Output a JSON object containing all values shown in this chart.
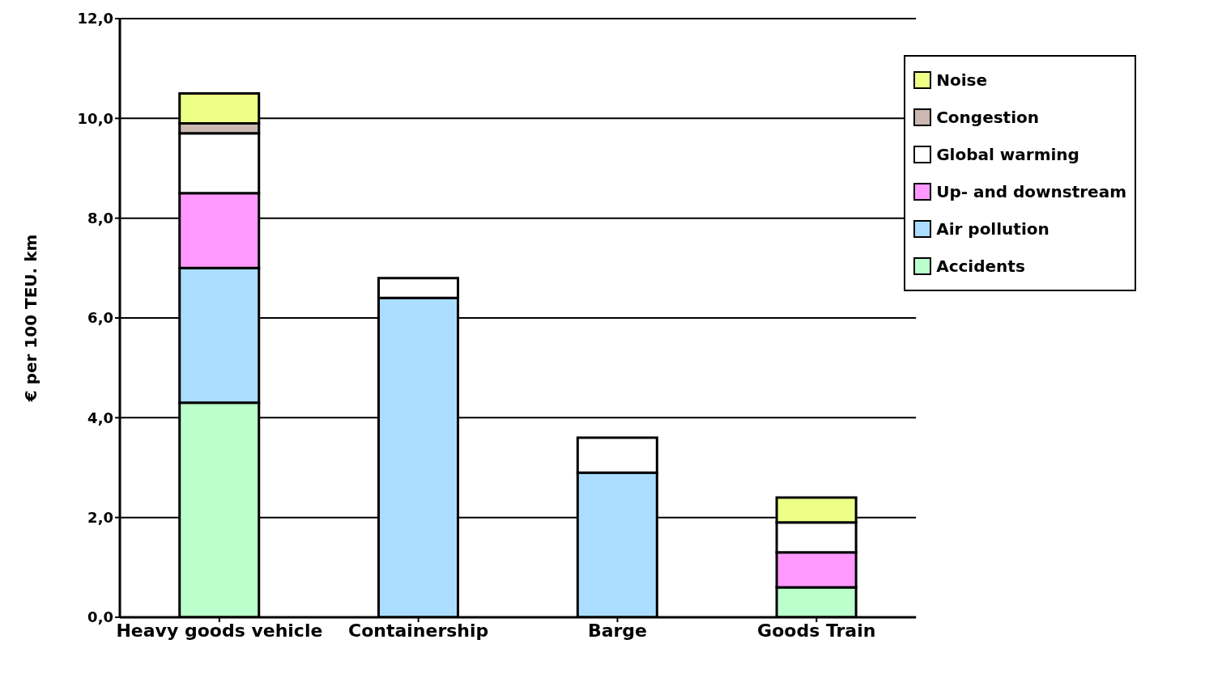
{
  "chart_data": {
    "type": "bar",
    "stacked": true,
    "ylabel": "€ per 100 TEU. km",
    "categories": [
      "Heavy goods vehicle",
      "Containership",
      "Barge",
      "Goods Train"
    ],
    "series": [
      {
        "name": "Accidents",
        "color": "#bbffcc",
        "values": [
          4.3,
          null,
          null,
          0.6
        ]
      },
      {
        "name": "Air pollution",
        "color": "#aaddff",
        "values": [
          2.7,
          6.4,
          2.9,
          null
        ]
      },
      {
        "name": "Up- and downstream",
        "color": "#ff99ff",
        "values": [
          1.5,
          null,
          null,
          0.7
        ]
      },
      {
        "name": "Global warming",
        "color": "#ffffff",
        "values": [
          1.2,
          0.4,
          0.7,
          0.6
        ]
      },
      {
        "name": "Congestion",
        "color": "#ccb8b0",
        "values": [
          0.2,
          null,
          null,
          null
        ]
      },
      {
        "name": "Noise",
        "color": "#eeff88",
        "values": [
          0.6,
          null,
          null,
          0.5
        ]
      }
    ],
    "ylim": [
      0,
      12
    ],
    "yticks": [
      {
        "value": 0,
        "label": "0,0"
      },
      {
        "value": 2,
        "label": "2,0"
      },
      {
        "value": 4,
        "label": "4,0"
      },
      {
        "value": 6,
        "label": "6,0"
      },
      {
        "value": 8,
        "label": "8,0"
      },
      {
        "value": 10,
        "label": "10,0"
      },
      {
        "value": 12,
        "label": "12,0"
      }
    ],
    "grid": "y",
    "legend": "top right"
  }
}
